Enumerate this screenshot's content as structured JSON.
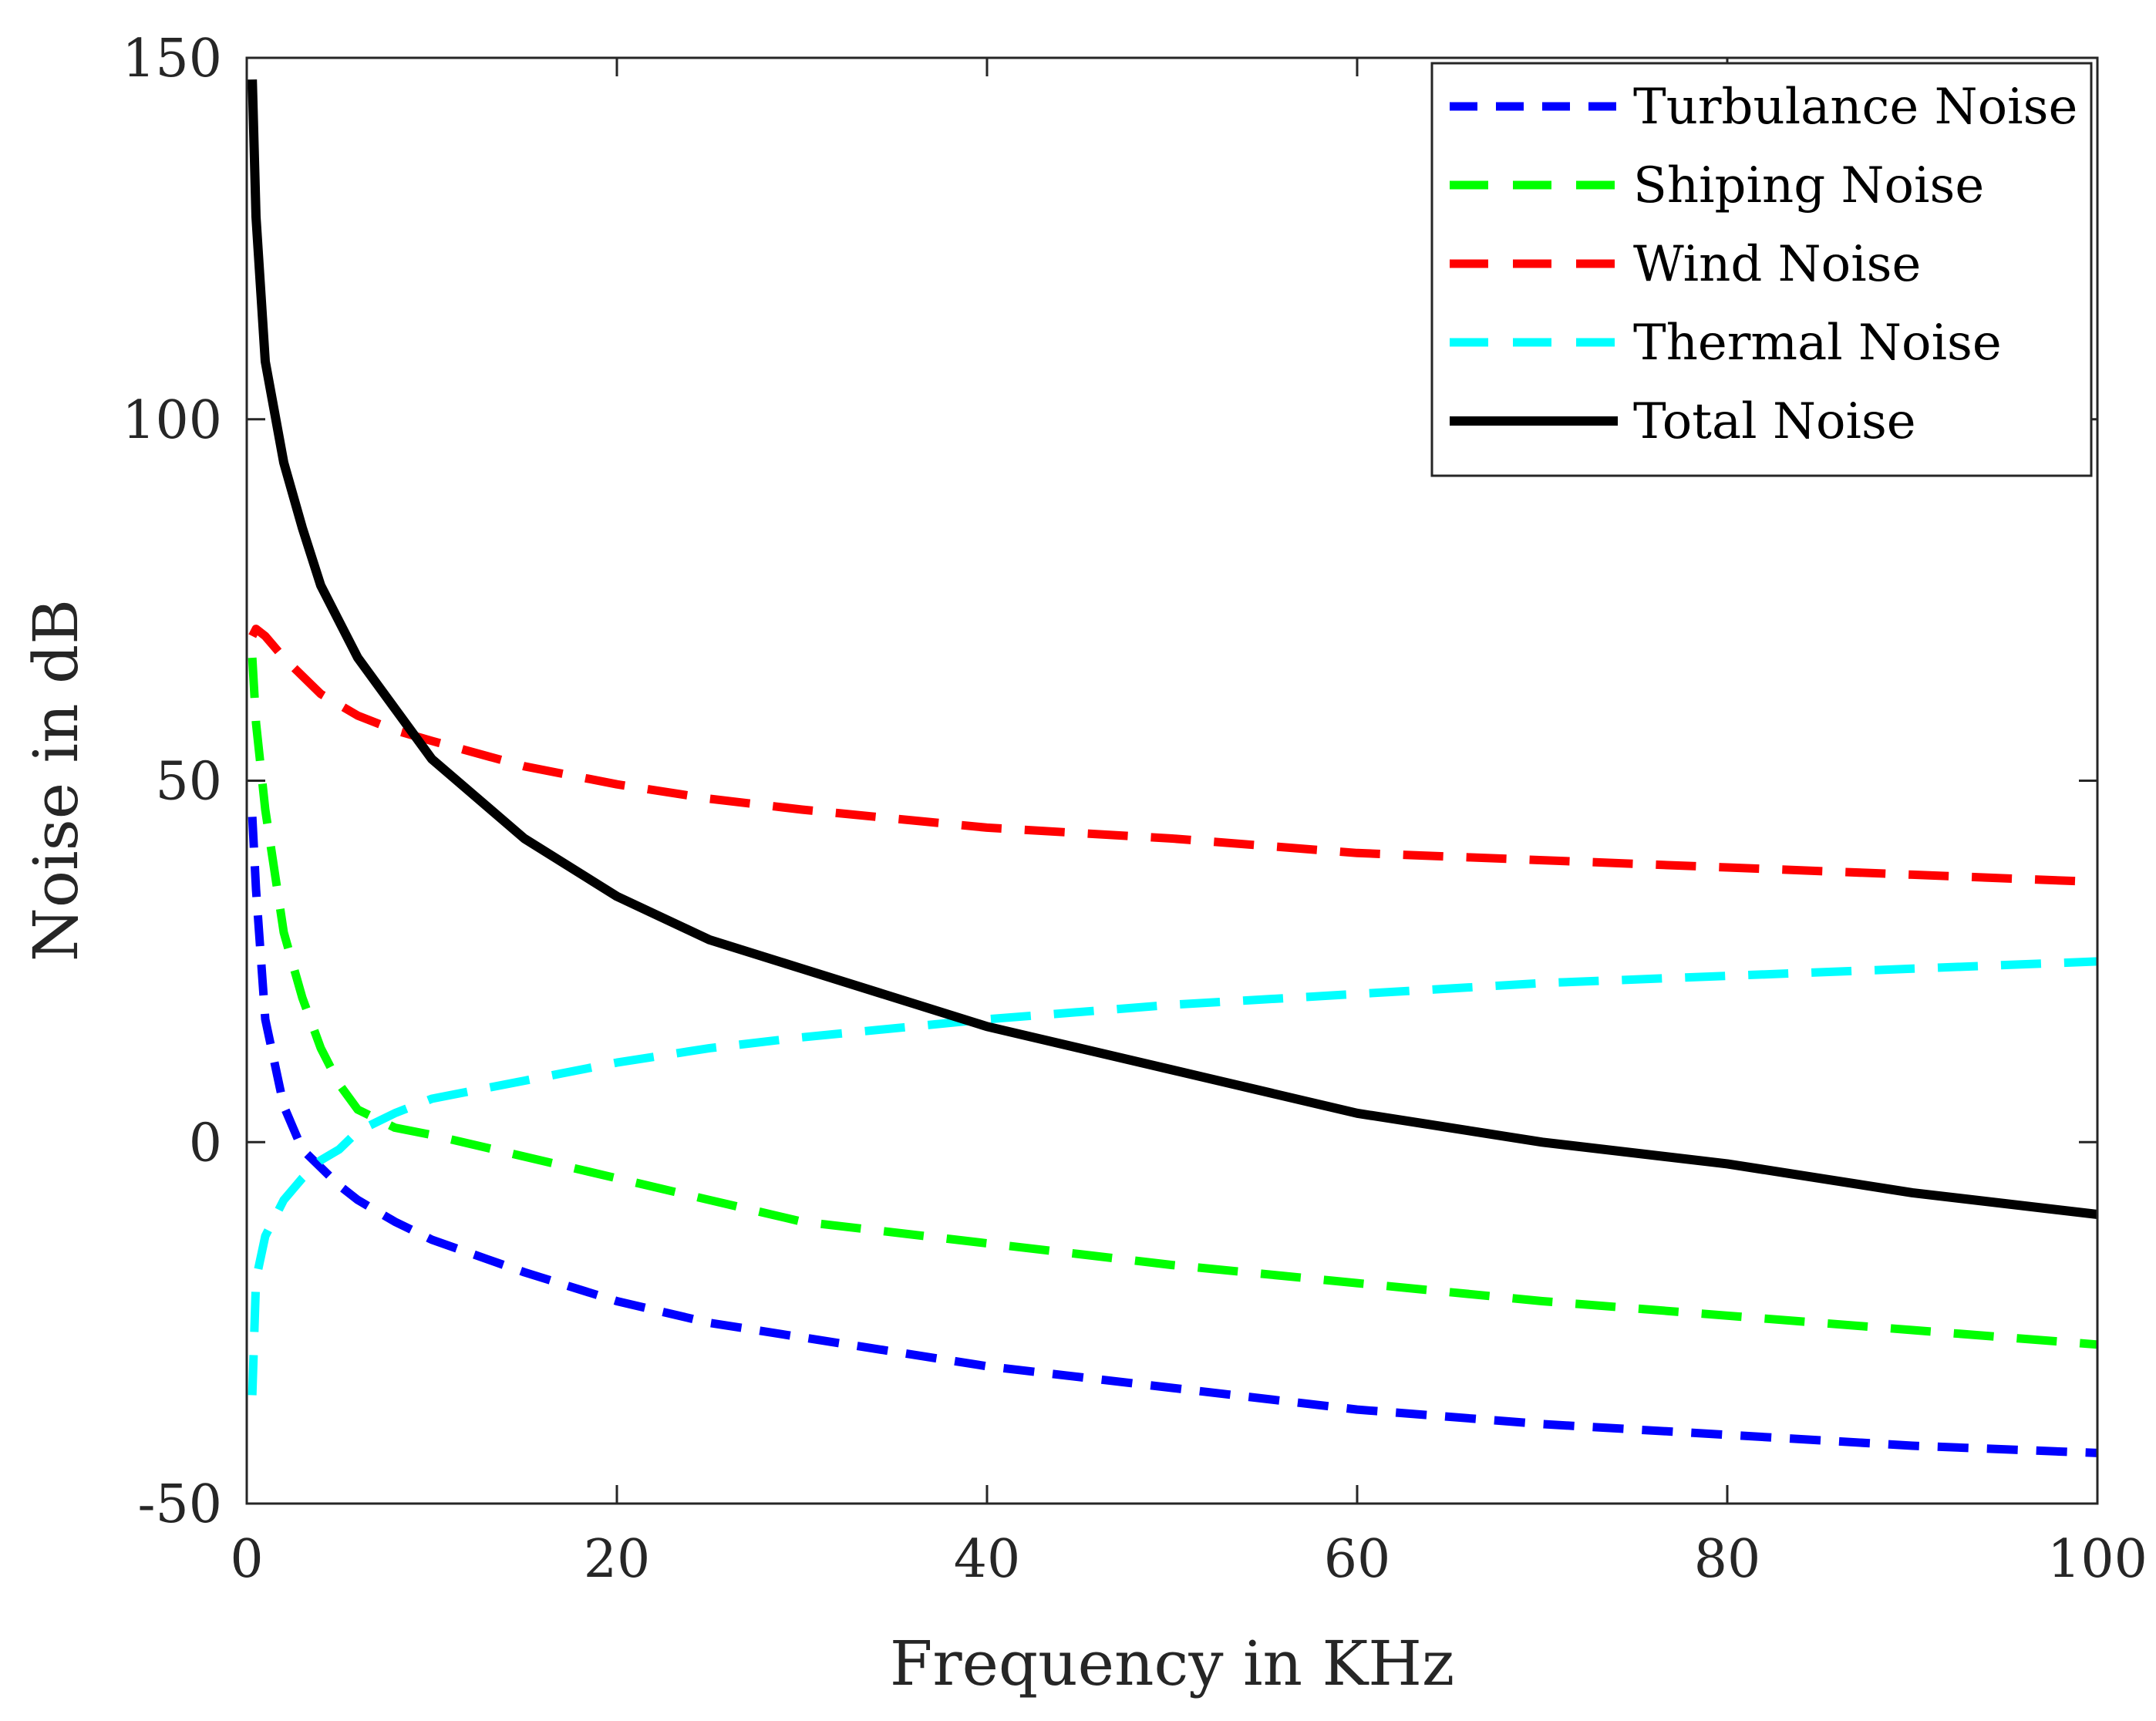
{
  "chart_data": {
    "type": "line",
    "title": "",
    "xlabel": "Frequency in KHz",
    "ylabel": "Noise in dB",
    "xlim": [
      0,
      100
    ],
    "ylim": [
      -50,
      150
    ],
    "xticks": [
      0,
      20,
      40,
      60,
      80,
      100
    ],
    "yticks": [
      -50,
      0,
      50,
      100,
      150
    ],
    "xtick_labels": [
      "0",
      "20",
      "40",
      "60",
      "80",
      "100"
    ],
    "ytick_labels": [
      "-50",
      "0",
      "50",
      "100",
      "150"
    ],
    "grid": false,
    "legend_position": "top-right",
    "x": [
      0.3,
      0.5,
      1,
      2,
      3,
      4,
      5,
      6,
      8,
      10,
      15,
      20,
      25,
      30,
      40,
      50,
      60,
      70,
      80,
      90,
      100
    ],
    "series": [
      {
        "name": "Turbulance Noise",
        "color": "#0000ff",
        "style": "dashed",
        "values": [
          45,
          35,
          17,
          5,
          -1,
          -3.5,
          -6,
          -8,
          -11,
          -13.5,
          -18,
          -22,
          -25,
          -27,
          -31,
          -34,
          -37,
          -39,
          -40.5,
          -42,
          -43
        ]
      },
      {
        "name": "Shiping Noise",
        "color": "#00ff00",
        "style": "dashed",
        "values": [
          67,
          58,
          46,
          29,
          20,
          13,
          8,
          4.5,
          2,
          1,
          -2,
          -5,
          -8,
          -11,
          -14,
          -17,
          -19.5,
          -22,
          -24,
          -26,
          -28
        ]
      },
      {
        "name": "Wind Noise",
        "color": "#ff0000",
        "style": "dashed",
        "values": [
          70,
          71,
          70,
          67,
          64.5,
          62,
          60.5,
          59,
          57,
          55.5,
          52,
          49.5,
          47.5,
          46,
          43.5,
          42,
          40,
          39,
          38,
          37,
          36
        ]
      },
      {
        "name": "Thermal Noise",
        "color": "#00ffff",
        "style": "dashed",
        "values": [
          -35,
          -19,
          -13,
          -8,
          -5,
          -2.5,
          -1,
          1.5,
          4,
          6,
          8.5,
          11,
          13,
          14.5,
          17,
          19,
          20.5,
          22,
          23,
          24,
          25
        ]
      },
      {
        "name": "Total Noise",
        "color": "#000000",
        "style": "solid",
        "values": [
          147,
          128,
          108,
          94,
          85,
          77,
          72,
          67,
          60,
          53,
          42,
          34,
          28,
          24,
          16,
          10,
          4,
          0,
          -3,
          -7,
          -10
        ]
      }
    ]
  }
}
